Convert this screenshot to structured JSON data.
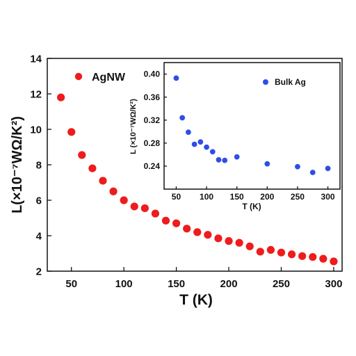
{
  "chart_data": [
    {
      "type": "scatter",
      "xlabel": "T (K)",
      "ylabel": "L(×10⁻⁷WΩ/K²)",
      "xlim": [
        27,
        308
      ],
      "ylim": [
        2,
        14
      ],
      "x_ticks": [
        50,
        100,
        150,
        200,
        250,
        300
      ],
      "y_ticks": [
        2,
        4,
        6,
        8,
        10,
        12,
        14
      ],
      "legend_placement": "top-left",
      "series": [
        {
          "name": "AgNW",
          "color": "#ee1c1c",
          "points": [
            [
              40,
              11.8
            ],
            [
              50,
              9.85
            ],
            [
              60,
              8.55
            ],
            [
              70,
              7.8
            ],
            [
              80,
              7.1
            ],
            [
              90,
              6.5
            ],
            [
              100,
              6.0
            ],
            [
              110,
              5.65
            ],
            [
              120,
              5.55
            ],
            [
              130,
              5.25
            ],
            [
              140,
              4.85
            ],
            [
              150,
              4.7
            ],
            [
              160,
              4.4
            ],
            [
              170,
              4.2
            ],
            [
              180,
              4.05
            ],
            [
              190,
              3.85
            ],
            [
              200,
              3.7
            ],
            [
              210,
              3.6
            ],
            [
              220,
              3.4
            ],
            [
              230,
              3.1
            ],
            [
              240,
              3.2
            ],
            [
              250,
              3.05
            ],
            [
              260,
              2.95
            ],
            [
              270,
              2.85
            ],
            [
              280,
              2.8
            ],
            [
              290,
              2.7
            ],
            [
              300,
              2.55
            ]
          ]
        }
      ]
    },
    {
      "type": "scatter",
      "xlabel": "T (K)",
      "ylabel": "L (×10⁻⁷WΩ/K²)",
      "xlim": [
        30,
        320
      ],
      "ylim": [
        0.2,
        0.42
      ],
      "x_ticks": [
        50,
        100,
        150,
        200,
        250,
        300
      ],
      "y_ticks": [
        0.24,
        0.28,
        0.32,
        0.36,
        0.4
      ],
      "y_tick_labels": [
        "0.24",
        "0.28",
        "0.32",
        "0.36",
        "0.40"
      ],
      "legend_placement": "top-right",
      "series": [
        {
          "name": "Bulk Ag",
          "color": "#2e4ee6",
          "points": [
            [
              50,
              0.393
            ],
            [
              60,
              0.324
            ],
            [
              70,
              0.299
            ],
            [
              80,
              0.278
            ],
            [
              90,
              0.282
            ],
            [
              100,
              0.273
            ],
            [
              110,
              0.265
            ],
            [
              120,
              0.251
            ],
            [
              130,
              0.25
            ],
            [
              150,
              0.256
            ],
            [
              200,
              0.244
            ],
            [
              250,
              0.239
            ],
            [
              275,
              0.229
            ],
            [
              300,
              0.236
            ]
          ]
        }
      ]
    }
  ]
}
